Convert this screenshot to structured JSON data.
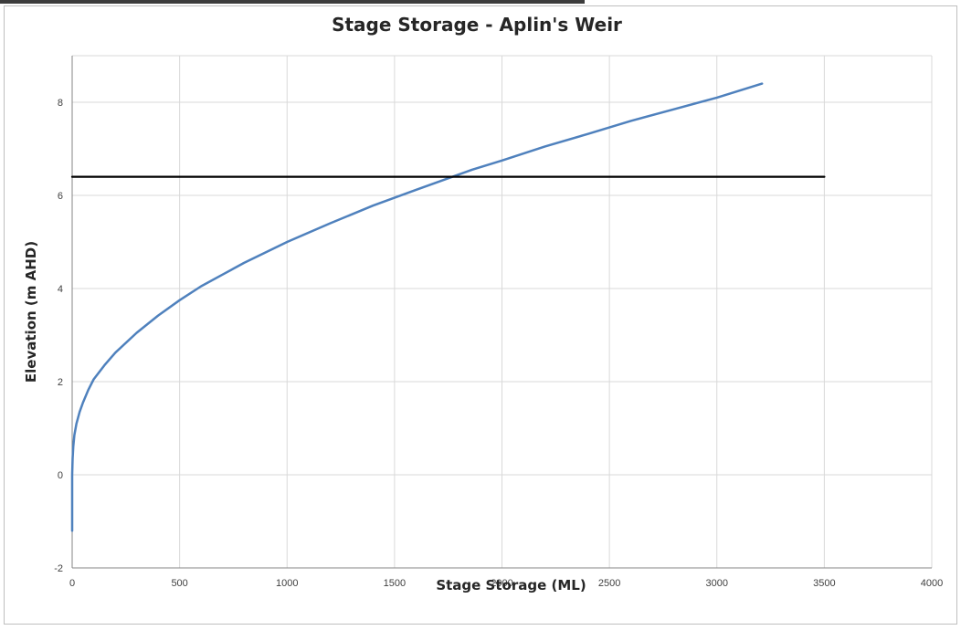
{
  "chart_data": {
    "type": "line",
    "title": "Stage Storage - Aplin's Weir",
    "xlabel": "Stage Storage (ML)",
    "ylabel": "Elevation (m AHD)",
    "xlim": [
      0,
      4000
    ],
    "ylim": [
      -2,
      9
    ],
    "xticks": [
      0,
      500,
      1000,
      1500,
      2000,
      2500,
      3000,
      3500,
      4000
    ],
    "yticks": [
      -2,
      0,
      2,
      4,
      6,
      8
    ],
    "grid": true,
    "legend": "none",
    "series": [
      {
        "color": "#4f81bd",
        "x": [
          0,
          0,
          2,
          5,
          10,
          20,
          35,
          50,
          75,
          100,
          150,
          200,
          300,
          400,
          500,
          600,
          700,
          800,
          1000,
          1200,
          1400,
          1600,
          1800,
          1860,
          2000,
          2200,
          2400,
          2600,
          2800,
          3000,
          3210
        ],
        "y": [
          -1.2,
          0,
          0.35,
          0.6,
          0.85,
          1.1,
          1.35,
          1.55,
          1.82,
          2.05,
          2.35,
          2.62,
          3.05,
          3.42,
          3.75,
          4.05,
          4.3,
          4.55,
          5.0,
          5.4,
          5.78,
          6.12,
          6.45,
          6.55,
          6.75,
          7.05,
          7.32,
          7.6,
          7.85,
          8.1,
          8.4
        ]
      },
      {
        "color": "#000000",
        "x": [
          0,
          3500
        ],
        "y": [
          6.4,
          6.4
        ]
      }
    ]
  }
}
